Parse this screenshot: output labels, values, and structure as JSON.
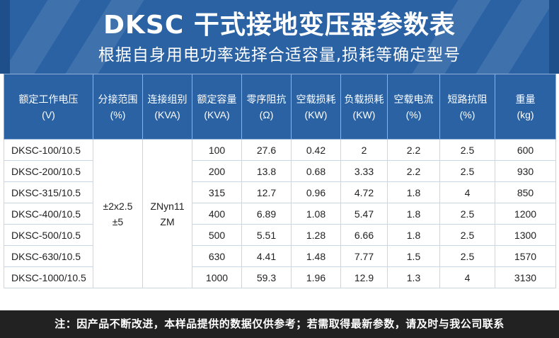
{
  "header": {
    "title": "DKSC 干式接地变压器参数表",
    "subtitle": "根据自身用电功率选择合适容量,损耗等确定型号"
  },
  "table": {
    "headers": [
      {
        "label": "额定工作电压",
        "unit": "(V)"
      },
      {
        "label": "分接范围",
        "unit": "(%)"
      },
      {
        "label": "连接组别",
        "unit": "(KVA)"
      },
      {
        "label": "额定容量",
        "unit": "(KVA)"
      },
      {
        "label": "零序阻抗",
        "unit": "(Ω)"
      },
      {
        "label": "空载损耗",
        "unit": "(KW)"
      },
      {
        "label": "负载损耗",
        "unit": "(KW)"
      },
      {
        "label": "空载电流",
        "unit": "(%)"
      },
      {
        "label": "短路抗阻",
        "unit": "(%)"
      },
      {
        "label": "重量",
        "unit": "(kg)"
      }
    ],
    "tap_range": {
      "line1": "±2x2.5",
      "line2": "±5"
    },
    "connection_group": {
      "line1": "ZNyn11",
      "line2": "ZM"
    },
    "rows": [
      {
        "model": "DKSC-100/10.5",
        "capacity": "100",
        "zero_seq_impedance": "27.6",
        "no_load_loss": "0.42",
        "load_loss": "2",
        "no_load_current": "2.2",
        "short_circuit_impedance": "2.5",
        "weight": "600"
      },
      {
        "model": "DKSC-200/10.5",
        "capacity": "200",
        "zero_seq_impedance": "13.8",
        "no_load_loss": "0.68",
        "load_loss": "3.33",
        "no_load_current": "2.2",
        "short_circuit_impedance": "2.5",
        "weight": "930"
      },
      {
        "model": "DKSC-315/10.5",
        "capacity": "315",
        "zero_seq_impedance": "12.7",
        "no_load_loss": "0.96",
        "load_loss": "4.72",
        "no_load_current": "1.8",
        "short_circuit_impedance": "4",
        "weight": "850"
      },
      {
        "model": "DKSC-400/10.5",
        "capacity": "400",
        "zero_seq_impedance": "6.89",
        "no_load_loss": "1.08",
        "load_loss": "5.47",
        "no_load_current": "1.8",
        "short_circuit_impedance": "2.5",
        "weight": "1200"
      },
      {
        "model": "DKSC-500/10.5",
        "capacity": "500",
        "zero_seq_impedance": "5.51",
        "no_load_loss": "1.28",
        "load_loss": "6.66",
        "no_load_current": "1.8",
        "short_circuit_impedance": "2.5",
        "weight": "1300"
      },
      {
        "model": "DKSC-630/10.5",
        "capacity": "630",
        "zero_seq_impedance": "4.41",
        "no_load_loss": "1.48",
        "load_loss": "7.77",
        "no_load_current": "1.5",
        "short_circuit_impedance": "2.5",
        "weight": "1570"
      },
      {
        "model": "DKSC-1000/10.5",
        "capacity": "1000",
        "zero_seq_impedance": "59.3",
        "no_load_loss": "1.96",
        "load_loss": "12.9",
        "no_load_current": "1.3",
        "short_circuit_impedance": "4",
        "weight": "3130"
      }
    ]
  },
  "footer": {
    "note": "注：因产品不断改进，本样品提供的数据仅供参考；若需取得最新参数，请及时与我公司联系"
  },
  "colors": {
    "banner": "#2a62a4",
    "header_cell": "#2a62a4",
    "footer": "#222222",
    "text": "#222222"
  }
}
